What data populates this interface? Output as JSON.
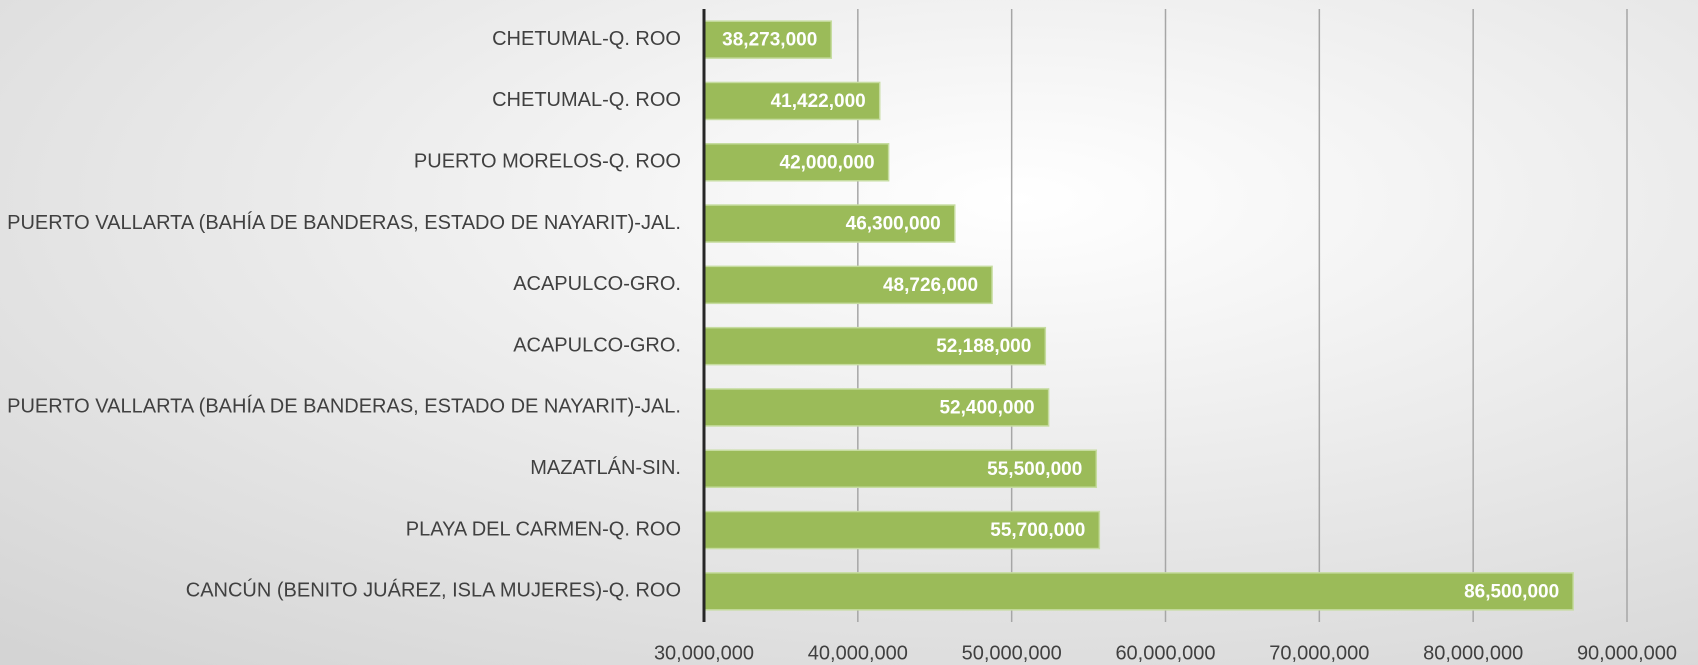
{
  "chart_data": {
    "type": "bar",
    "orientation": "horizontal",
    "categories": [
      "CHETUMAL-Q. ROO",
      "CHETUMAL-Q. ROO",
      "PUERTO MORELOS-Q. ROO",
      "PUERTO VALLARTA (BAHÍA DE BANDERAS, ESTADO DE NAYARIT)-JAL.",
      "ACAPULCO-GRO.",
      "ACAPULCO-GRO.",
      "PUERTO VALLARTA (BAHÍA DE BANDERAS, ESTADO DE NAYARIT)-JAL.",
      "MAZATLÁN-SIN.",
      "PLAYA DEL CARMEN-Q. ROO",
      "CANCÚN (BENITO JUÁREZ, ISLA MUJERES)-Q. ROO"
    ],
    "values": [
      38273000,
      41422000,
      42000000,
      46300000,
      48726000,
      52188000,
      52400000,
      55500000,
      55700000,
      86500000
    ],
    "value_labels": [
      "38,273,000",
      "41,422,000",
      "42,000,000",
      "46,300,000",
      "48,726,000",
      "52,188,000",
      "52,400,000",
      "55,500,000",
      "55,700,000",
      "86,500,000"
    ],
    "color": "#9bbb59",
    "xlim": [
      30000000,
      90000000
    ],
    "xticks": [
      {
        "value": 30000000,
        "label": "30,000,000"
      },
      {
        "value": 40000000,
        "label": "40,000,000"
      },
      {
        "value": 50000000,
        "label": "50,000,000"
      },
      {
        "value": 60000000,
        "label": "60,000,000"
      },
      {
        "value": 70000000,
        "label": "70,000,000"
      },
      {
        "value": 80000000,
        "label": "80,000,000"
      },
      {
        "value": 90000000,
        "label": "90,000,000"
      }
    ],
    "grid": true
  }
}
